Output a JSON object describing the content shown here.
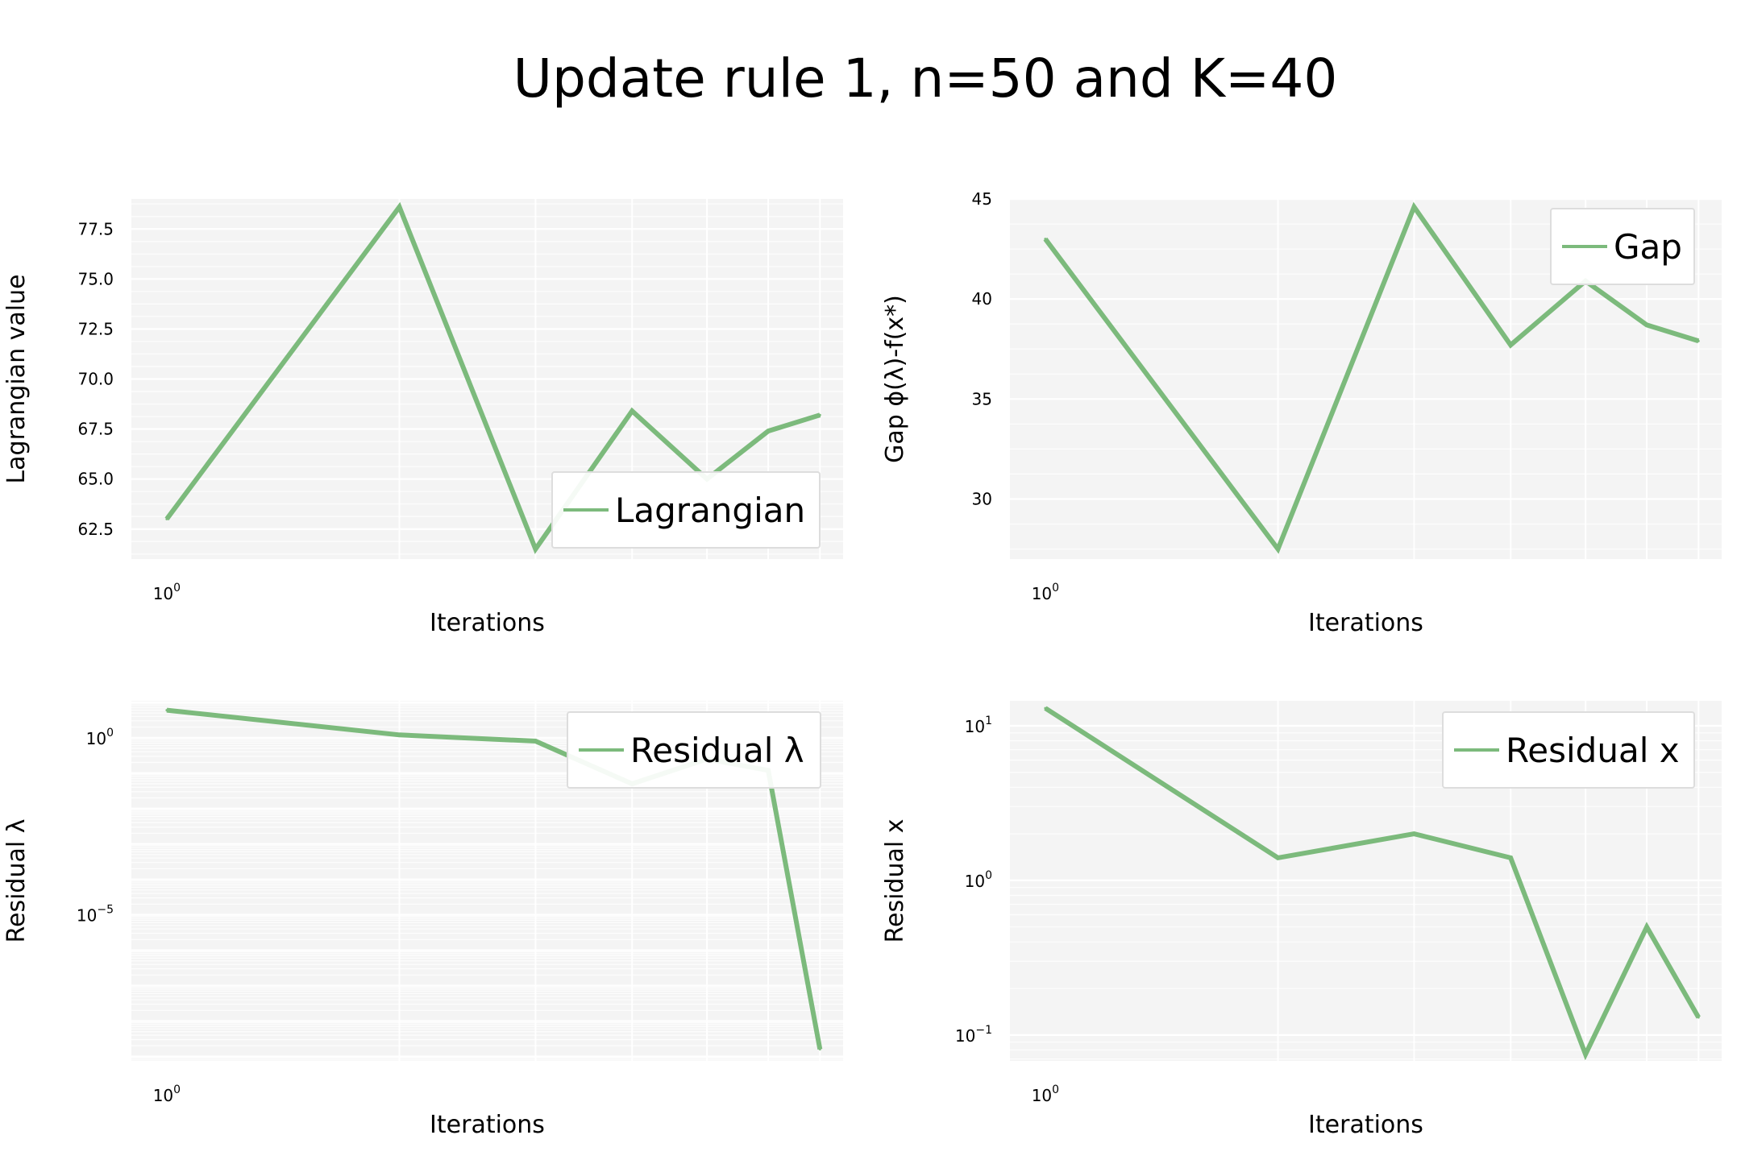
{
  "figure": {
    "title": "Update rule 1, n=50 and K=40"
  },
  "style": {
    "line_color": "#7cba7c",
    "panel_background": "#f4f4f4",
    "grid_color": "#ffffff",
    "legend_background": "#ffffff",
    "legend_border": "#dddddd"
  },
  "chart_data": [
    {
      "type": "line",
      "xscale": "log",
      "yscale": "linear",
      "x": [
        1,
        2,
        3,
        4,
        5,
        6,
        7
      ],
      "series": [
        {
          "name": "Lagrangian",
          "values": [
            63.0,
            78.6,
            61.5,
            68.4,
            65.0,
            67.4,
            68.2
          ]
        }
      ],
      "xlabel": "Iterations",
      "ylabel": "Lagrangian value",
      "xlim": [
        0.9,
        7.5
      ],
      "ylim": [
        61.0,
        79.0
      ],
      "x_ticks": [
        {
          "value": 1,
          "base": "10",
          "exp": "0"
        }
      ],
      "y_ticks": [
        62.5,
        65.0,
        67.5,
        70.0,
        72.5,
        75.0,
        77.5
      ],
      "y_tick_labels": [
        "62.5",
        "65.0",
        "67.5",
        "70.0",
        "72.5",
        "75.0",
        "77.5"
      ],
      "grid": true,
      "legend": "lower-right"
    },
    {
      "type": "line",
      "xscale": "log",
      "yscale": "linear",
      "x": [
        1,
        2,
        3,
        4,
        5,
        6,
        7
      ],
      "series": [
        {
          "name": "Gap",
          "values": [
            43.0,
            27.5,
            44.6,
            37.7,
            40.9,
            38.7,
            37.9
          ]
        }
      ],
      "xlabel": "Iterations",
      "ylabel": "Gap ϕ(λ)-f(x*)",
      "xlim": [
        0.9,
        7.5
      ],
      "ylim": [
        27.0,
        45.0
      ],
      "x_ticks": [
        {
          "value": 1,
          "base": "10",
          "exp": "0"
        }
      ],
      "y_ticks": [
        30,
        35,
        40,
        45
      ],
      "y_tick_labels": [
        "30",
        "35",
        "40",
        "45"
      ],
      "grid": true,
      "legend": "upper-right"
    },
    {
      "type": "line",
      "xscale": "log",
      "yscale": "log",
      "x": [
        1,
        2,
        3,
        4,
        5,
        6,
        7
      ],
      "series": [
        {
          "name": "Residual λ",
          "values": [
            6.0,
            1.2,
            0.8,
            0.05,
            0.25,
            0.12,
            1.6e-09
          ]
        }
      ],
      "xlabel": "Iterations",
      "ylabel": "Residual λ",
      "xlim": [
        0.9,
        7.5
      ],
      "ylim": [
        7.5e-10,
        11.0
      ],
      "x_ticks": [
        {
          "value": 1,
          "base": "10",
          "exp": "0"
        }
      ],
      "y_ticks": [
        {
          "value": 1,
          "base": "10",
          "exp": "0"
        },
        {
          "value": 1e-05,
          "base": "10",
          "exp": "−5"
        }
      ],
      "grid": true,
      "legend": "upper-right"
    },
    {
      "type": "line",
      "xscale": "log",
      "yscale": "log",
      "x": [
        1,
        2,
        3,
        4,
        5,
        6,
        7
      ],
      "series": [
        {
          "name": "Residual x",
          "values": [
            13.0,
            1.4,
            2.0,
            1.4,
            0.075,
            0.5,
            0.13
          ]
        }
      ],
      "xlabel": "Iterations",
      "ylabel": "Residual x",
      "xlim": [
        0.9,
        7.5
      ],
      "ylim": [
        0.068,
        14.5
      ],
      "x_ticks": [
        {
          "value": 1,
          "base": "10",
          "exp": "0"
        }
      ],
      "y_ticks": [
        {
          "value": 10,
          "base": "10",
          "exp": "1"
        },
        {
          "value": 1,
          "base": "10",
          "exp": "0"
        },
        {
          "value": 0.1,
          "base": "10",
          "exp": "−1"
        }
      ],
      "grid": true,
      "legend": "upper-right"
    }
  ]
}
